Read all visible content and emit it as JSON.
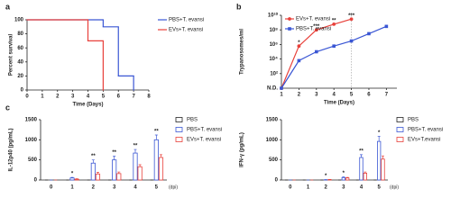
{
  "chart_data": [
    {
      "type": "step",
      "panel": "a",
      "ylabel": "Percent survival",
      "xlabel": "Time (Days)",
      "xlim": [
        0,
        8
      ],
      "xticks": [
        0,
        1,
        2,
        3,
        4,
        5,
        6,
        7,
        8
      ],
      "ylim": [
        0,
        100
      ],
      "yticks": [
        0,
        20,
        40,
        60,
        80,
        100
      ],
      "legend": "right",
      "series": [
        {
          "name": "PBS+T. evansi",
          "color": "#3a56d4",
          "x": [
            0,
            5,
            6,
            7
          ],
          "values": [
            100,
            90,
            20,
            0
          ]
        },
        {
          "name": "EVs+T. evansi",
          "color": "#e8403a",
          "x": [
            0,
            4,
            5
          ],
          "values": [
            100,
            70,
            0
          ]
        }
      ]
    },
    {
      "type": "line",
      "panel": "b",
      "ylabel": "Trypanosomes/ml",
      "xlabel": "Time (Days)",
      "log_y": true,
      "xlim": [
        1,
        7.6
      ],
      "xticks": [
        1,
        2,
        3,
        4,
        5,
        6,
        7
      ],
      "ylim": [
        1,
        10000000000
      ],
      "yticks": [
        {
          "value": 1,
          "label": "N.D."
        },
        {
          "value": 100,
          "label": "10²"
        },
        {
          "value": 10000,
          "label": "10⁴"
        },
        {
          "value": 1000000,
          "label": "10⁶"
        },
        {
          "value": 100000000,
          "label": "10⁸"
        },
        {
          "value": 10000000000,
          "label": "10¹⁰"
        }
      ],
      "legend": "upper-left",
      "vline": 5,
      "series": [
        {
          "name": "EVs+T. evansi",
          "color": "#e8403a",
          "marker": "circle",
          "x": [
            1,
            2,
            3,
            4,
            5
          ],
          "values": [
            1,
            600000,
            100000000,
            600000000,
            3000000000
          ]
        },
        {
          "name": "PBS+T. evansi",
          "color": "#3a56d4",
          "marker": "square",
          "x": [
            1,
            2,
            3,
            4,
            5,
            6,
            7
          ],
          "values": [
            1,
            6000,
            100000,
            600000,
            3000000,
            30000000,
            300000000
          ]
        }
      ],
      "annotations": [
        {
          "x": 2,
          "text": "*"
        },
        {
          "x": 3,
          "text": "***"
        },
        {
          "x": 4,
          "text": "**"
        },
        {
          "x": 5,
          "text": "***"
        }
      ]
    },
    {
      "type": "bar",
      "panel": "c",
      "ylabel": "IL-12p40  (pg/mL)",
      "xlabel": "(dpi)",
      "categories": [
        "0",
        "1",
        "2",
        "3",
        "4",
        "5"
      ],
      "ylim": [
        0,
        1500
      ],
      "yticks": [
        0,
        500,
        1000,
        1500
      ],
      "legend": "right",
      "series": [
        {
          "name": "PBS",
          "color": "#222222",
          "values": [
            0,
            0,
            0,
            0,
            0,
            0
          ],
          "errors": [
            0,
            0,
            0,
            0,
            0,
            0
          ]
        },
        {
          "name": "PBS+T. evansi",
          "color": "#3a56d4",
          "values": [
            0,
            50,
            420,
            500,
            670,
            1000
          ],
          "errors": [
            0,
            15,
            80,
            90,
            90,
            120
          ]
        },
        {
          "name": "EVs+T. evansi",
          "color": "#e8403a",
          "values": [
            0,
            20,
            150,
            160,
            330,
            560
          ],
          "errors": [
            0,
            10,
            40,
            40,
            50,
            70
          ]
        }
      ],
      "annotations": [
        {
          "x": "1",
          "text": "*"
        },
        {
          "x": "2",
          "text": "**"
        },
        {
          "x": "3",
          "text": "**"
        },
        {
          "x": "4",
          "text": "**"
        },
        {
          "x": "5",
          "text": "**"
        }
      ]
    },
    {
      "type": "bar",
      "ylabel": "IFN-γ  (pg/mL)",
      "xlabel": "(dpi)",
      "categories": [
        "0",
        "1",
        "2",
        "3",
        "4",
        "5"
      ],
      "ylim": [
        0,
        1500
      ],
      "yticks": [
        0,
        500,
        1000,
        1500
      ],
      "legend": "right",
      "series": [
        {
          "name": "PBS",
          "color": "#222222",
          "values": [
            0,
            0,
            0,
            0,
            0,
            0
          ],
          "errors": [
            0,
            0,
            0,
            0,
            0,
            0
          ]
        },
        {
          "name": "PBS+T. evansi",
          "color": "#3a56d4",
          "values": [
            0,
            0,
            5,
            60,
            560,
            960
          ],
          "errors": [
            0,
            0,
            5,
            20,
            70,
            130
          ]
        },
        {
          "name": "EVs+T.evansi",
          "color": "#e8403a",
          "values": [
            0,
            0,
            10,
            50,
            170,
            520
          ],
          "errors": [
            0,
            0,
            5,
            15,
            30,
            80
          ]
        }
      ],
      "annotations": [
        {
          "x": "2",
          "text": "*"
        },
        {
          "x": "3",
          "text": "*"
        },
        {
          "x": "4",
          "text": "**"
        },
        {
          "x": "5",
          "text": "*"
        }
      ]
    }
  ]
}
